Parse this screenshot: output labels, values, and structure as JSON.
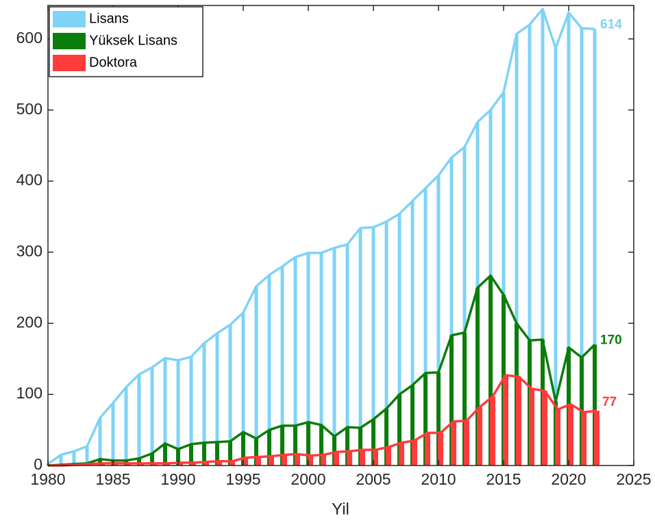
{
  "chart_data": {
    "type": "bar",
    "x": [
      1980,
      1981,
      1982,
      1983,
      1984,
      1985,
      1986,
      1987,
      1988,
      1989,
      1990,
      1991,
      1992,
      1993,
      1994,
      1995,
      1996,
      1997,
      1998,
      1999,
      2000,
      2001,
      2002,
      2003,
      2004,
      2005,
      2006,
      2007,
      2008,
      2009,
      2010,
      2011,
      2012,
      2013,
      2014,
      2015,
      2016,
      2017,
      2018,
      2019,
      2020,
      2021,
      2022
    ],
    "series": [
      {
        "name": "Lisans",
        "color": "#7fd3f7",
        "values": [
          2,
          15,
          20,
          27,
          67,
          88,
          110,
          128,
          138,
          151,
          148,
          153,
          172,
          186,
          198,
          215,
          252,
          268,
          280,
          293,
          299,
          299,
          306,
          311,
          334,
          335,
          343,
          354,
          372,
          390,
          408,
          433,
          448,
          483,
          500,
          525,
          607,
          620,
          642,
          587,
          637,
          615,
          614
        ]
      },
      {
        "name": "Yüksek Lisans",
        "color": "#0a7d0a",
        "values": [
          0,
          1,
          2,
          3,
          9,
          7,
          7,
          10,
          17,
          31,
          23,
          30,
          32,
          33,
          34,
          47,
          38,
          50,
          56,
          56,
          61,
          57,
          41,
          54,
          53,
          65,
          80,
          100,
          113,
          130,
          131,
          183,
          187,
          250,
          267,
          240,
          200,
          176,
          177,
          90,
          166,
          152,
          170
        ]
      },
      {
        "name": "Doktora",
        "color": "#ff3b3b",
        "values": [
          0,
          0,
          1,
          2,
          3,
          3,
          3,
          3,
          3,
          3,
          4,
          4,
          5,
          6,
          6,
          11,
          12,
          13,
          15,
          16,
          14,
          15,
          19,
          20,
          22,
          22,
          26,
          32,
          35,
          46,
          46,
          62,
          63,
          82,
          97,
          127,
          125,
          108,
          105,
          79,
          86,
          75,
          77
        ]
      }
    ],
    "xlabel": "Yil",
    "xlim": [
      1980,
      2025
    ],
    "xticks": [
      1980,
      1985,
      1990,
      1995,
      2000,
      2005,
      2010,
      2015,
      2020,
      2025
    ],
    "ylim": [
      0,
      647
    ],
    "yticks": [
      0,
      100,
      200,
      300,
      400,
      500,
      600
    ],
    "legend": "upper left"
  }
}
